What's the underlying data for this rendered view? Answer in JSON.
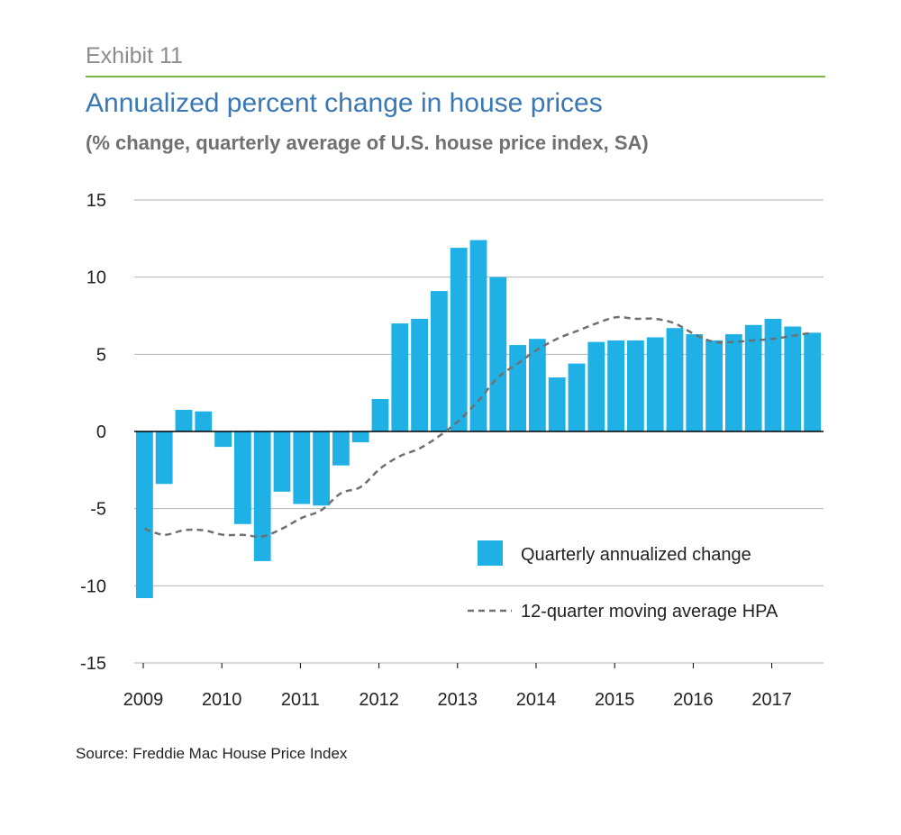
{
  "header": {
    "exhibit": "Exhibit 11",
    "title": "Annualized percent change in house prices",
    "subtitle": "(% change, quarterly average of U.S. house price index, SA)"
  },
  "footer": {
    "source": "Source: Freddie Mac House Price Index"
  },
  "colors": {
    "bar": "#1fb0e6",
    "line": "#707070",
    "grid": "#b3b3b3",
    "zero_line": "#000000",
    "exhibit_rule": "#7ab648",
    "title": "#3a78b5"
  },
  "chart_data": {
    "type": "bar",
    "title": "Annualized percent change in house prices",
    "subtitle": "(% change, quarterly average of U.S. house price index, SA)",
    "xlabel": "",
    "ylabel": "",
    "ylim": [
      -15,
      15
    ],
    "yticks": [
      15,
      10,
      5,
      0,
      -5,
      -10,
      -15
    ],
    "ytick_labels": [
      "15",
      "10",
      "5",
      "0",
      "-5",
      "-10",
      "-15"
    ],
    "xtick_labels": [
      "2009",
      "2010",
      "2011",
      "2012",
      "2013",
      "2014",
      "2015",
      "2016",
      "2017"
    ],
    "grid": true,
    "legend_position": "lower-right",
    "categories": [
      "2009Q1",
      "2009Q2",
      "2009Q3",
      "2009Q4",
      "2010Q1",
      "2010Q2",
      "2010Q3",
      "2010Q4",
      "2011Q1",
      "2011Q2",
      "2011Q3",
      "2011Q4",
      "2012Q1",
      "2012Q2",
      "2012Q3",
      "2012Q4",
      "2013Q1",
      "2013Q2",
      "2013Q3",
      "2013Q4",
      "2014Q1",
      "2014Q2",
      "2014Q3",
      "2014Q4",
      "2015Q1",
      "2015Q2",
      "2015Q3",
      "2015Q4",
      "2016Q1",
      "2016Q2",
      "2016Q3",
      "2016Q4",
      "2017Q1",
      "2017Q2",
      "2017Q3"
    ],
    "series": [
      {
        "name": "Quarterly annualized change",
        "type": "bar",
        "values": [
          -10.8,
          -3.4,
          1.4,
          1.3,
          -1.0,
          -6.0,
          -8.4,
          -3.9,
          -4.7,
          -4.8,
          -2.2,
          -0.7,
          2.1,
          7.0,
          7.3,
          9.1,
          11.9,
          12.4,
          10.0,
          5.6,
          6.0,
          3.5,
          4.4,
          5.8,
          5.9,
          5.9,
          6.1,
          6.7,
          6.3,
          5.9,
          6.3,
          6.9,
          7.3,
          6.8,
          6.4
        ]
      },
      {
        "name": "12-quarter moving average HPA",
        "type": "line",
        "values": [
          -6.3,
          -6.7,
          -6.4,
          -6.4,
          -6.7,
          -6.7,
          -6.8,
          -6.3,
          -5.6,
          -5.1,
          -4.0,
          -3.6,
          -2.4,
          -1.6,
          -1.1,
          -0.3,
          0.7,
          2.0,
          3.5,
          4.4,
          5.3,
          6.0,
          6.5,
          7.0,
          7.4,
          7.3,
          7.3,
          7.0,
          6.3,
          5.8,
          5.8,
          5.9,
          6.0,
          6.2,
          6.4
        ]
      }
    ]
  }
}
